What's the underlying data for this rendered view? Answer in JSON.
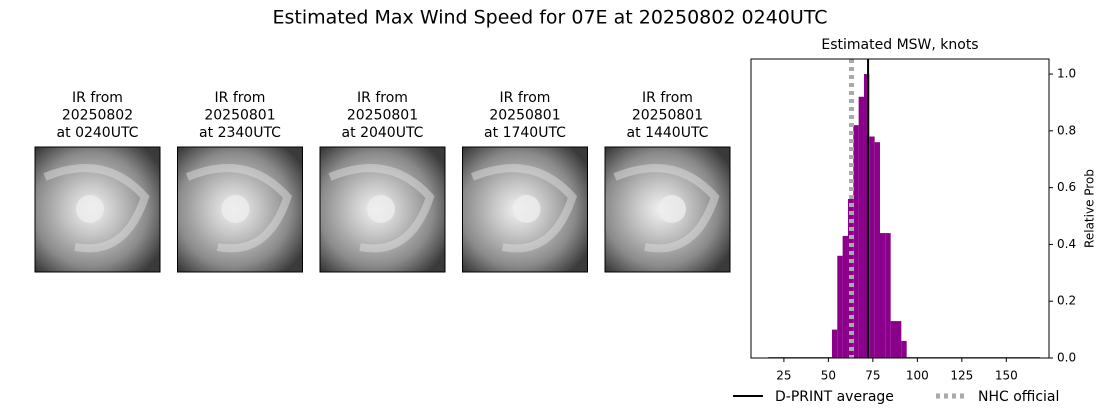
{
  "title": "Estimated Max Wind Speed for 07E at 20250802 0240UTC",
  "panels": [
    {
      "lines": [
        "IR from",
        "20250802",
        "at 0240UTC"
      ]
    },
    {
      "lines": [
        "IR from",
        "20250801",
        "at 2340UTC"
      ]
    },
    {
      "lines": [
        "IR from",
        "20250801",
        "at 2040UTC"
      ]
    },
    {
      "lines": [
        "IR from",
        "20250801",
        "at 1740UTC"
      ]
    },
    {
      "lines": [
        "IR from",
        "20250801",
        "at 1440UTC"
      ]
    }
  ],
  "chart_data": {
    "type": "histogram",
    "title": "Estimated MSW, knots",
    "y_label": "Relative Prob",
    "color": "#8b008b",
    "bins": [
      16,
      52,
      55,
      58,
      61,
      64,
      67,
      70,
      73,
      76,
      79,
      82,
      85,
      88,
      91,
      94,
      169
    ],
    "values": [
      0.003,
      0.1,
      0.36,
      0.43,
      0.56,
      0.82,
      0.92,
      1.0,
      0.78,
      0.76,
      0.44,
      0.44,
      0.13,
      0.13,
      0.06,
      0.003
    ],
    "lines": [
      {
        "name": "D-PRINT average",
        "value": 72.3,
        "color": "#000000",
        "style": "solid"
      },
      {
        "name": "NHC official",
        "value": 63,
        "color": "#aaaaaa",
        "style": "dotted"
      }
    ],
    "xlim": [
      6.5,
      174
    ],
    "ylim": [
      0,
      1.053
    ],
    "xticks": [
      25,
      50,
      75,
      100,
      125,
      150
    ],
    "yticks": [
      {
        "value": 0,
        "label": "0.0"
      },
      0.2,
      0.4,
      0.6,
      0.8,
      {
        "value": 1,
        "label": "1.0"
      }
    ],
    "y_axis_side": "right"
  }
}
